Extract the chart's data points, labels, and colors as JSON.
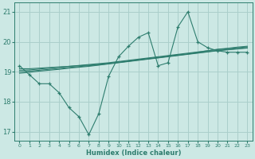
{
  "x": [
    0,
    1,
    2,
    3,
    4,
    5,
    6,
    7,
    8,
    9,
    10,
    11,
    12,
    13,
    14,
    15,
    16,
    17,
    18,
    19,
    20,
    21,
    22,
    23
  ],
  "main_y": [
    19.2,
    18.9,
    18.6,
    18.6,
    18.3,
    17.8,
    17.5,
    16.9,
    17.6,
    18.85,
    19.5,
    19.85,
    20.15,
    20.3,
    19.2,
    19.3,
    20.5,
    21.0,
    20.0,
    19.8,
    19.7,
    19.65,
    19.65,
    19.65
  ],
  "trend1_y": [
    19.1,
    19.1,
    19.12,
    19.14,
    19.16,
    19.18,
    19.2,
    19.22,
    19.25,
    19.28,
    19.32,
    19.36,
    19.4,
    19.44,
    19.48,
    19.52,
    19.56,
    19.6,
    19.65,
    19.7,
    19.75,
    19.78,
    19.82,
    19.85
  ],
  "trend2_y": [
    19.05,
    19.06,
    19.09,
    19.12,
    19.15,
    19.18,
    19.21,
    19.24,
    19.27,
    19.3,
    19.34,
    19.38,
    19.42,
    19.46,
    19.5,
    19.54,
    19.58,
    19.62,
    19.66,
    19.7,
    19.74,
    19.77,
    19.8,
    19.83
  ],
  "trend3_y": [
    19.0,
    19.02,
    19.05,
    19.08,
    19.11,
    19.14,
    19.17,
    19.2,
    19.23,
    19.27,
    19.31,
    19.35,
    19.39,
    19.43,
    19.47,
    19.51,
    19.55,
    19.59,
    19.63,
    19.67,
    19.71,
    19.74,
    19.77,
    19.8
  ],
  "trend4_y": [
    18.95,
    18.98,
    19.02,
    19.05,
    19.08,
    19.12,
    19.15,
    19.18,
    19.22,
    19.26,
    19.3,
    19.34,
    19.38,
    19.42,
    19.46,
    19.5,
    19.54,
    19.58,
    19.62,
    19.66,
    19.7,
    19.73,
    19.76,
    19.79
  ],
  "line_color": "#2e7d6e",
  "bg_color": "#cce8e4",
  "grid_color": "#aacfcb",
  "xlabel": "Humidex (Indice chaleur)",
  "xlim": [
    -0.5,
    23.5
  ],
  "ylim": [
    16.7,
    21.3
  ],
  "yticks": [
    17,
    18,
    19,
    20,
    21
  ],
  "xticks": [
    0,
    1,
    2,
    3,
    4,
    5,
    6,
    7,
    8,
    9,
    10,
    11,
    12,
    13,
    14,
    15,
    16,
    17,
    18,
    19,
    20,
    21,
    22,
    23
  ]
}
